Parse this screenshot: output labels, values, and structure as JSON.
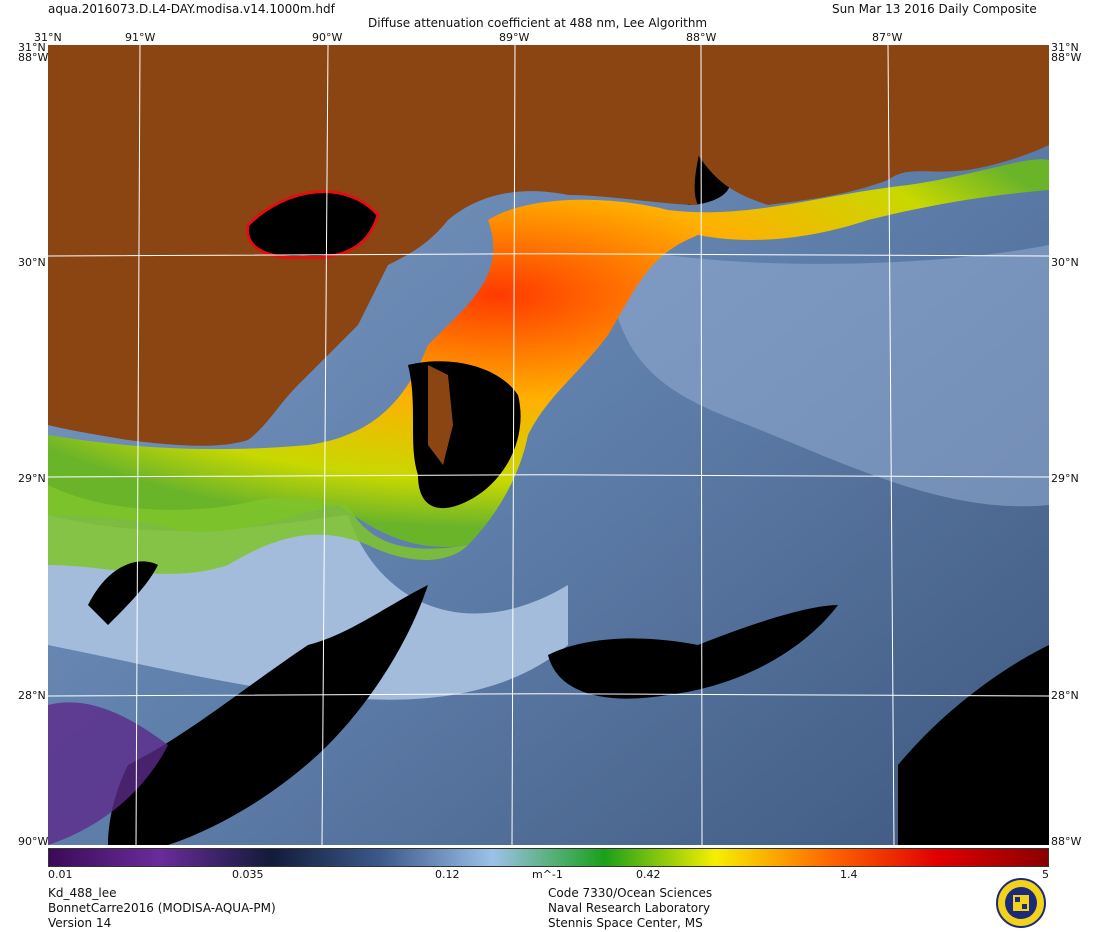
{
  "header": {
    "filename": "aqua.2016073.D.L4-DAY.modisa.v14.1000m.hdf",
    "title": "Diffuse attenuation coefficient at 488 nm, Lee Algorithm",
    "date": "Sun Mar 13 2016 Daily Composite"
  },
  "map": {
    "lon_labels": [
      "91°W",
      "90°W",
      "89°W",
      "88°W",
      "87°W"
    ],
    "lat_labels": [
      "30°N",
      "29°N",
      "28°N"
    ],
    "corner_top": "31°N",
    "corner_edge": "88°W",
    "corner_bottom": "90°W",
    "colors": {
      "land": "#8b4513",
      "ocean_deep": "#3e587f",
      "ocean_mid": "#6e8fb8",
      "ocean_light": "#a8bfdd",
      "no_data": "#000000",
      "grid": "#ffffff"
    }
  },
  "colorbar": {
    "ticks": [
      "0.01",
      "0.035",
      "0.12",
      "m^-1",
      "0.42",
      "1.4",
      "5"
    ],
    "colors": [
      "#3b0a57",
      "#6a2c9a",
      "#131a3a",
      "#3c5a8a",
      "#9cc2e8",
      "#1aa01a",
      "#f5ef00",
      "#ff6a00",
      "#e00000",
      "#8b0000"
    ]
  },
  "footer": {
    "product": "Kd_488_lee",
    "campaign": "BonnetCarre2016 (MODISA-AQUA-PM)",
    "version": "Version 14",
    "org_code": "Code 7330/Ocean Sciences",
    "org_name": "Naval Research Laboratory",
    "org_location": "Stennis Space Center, MS"
  }
}
